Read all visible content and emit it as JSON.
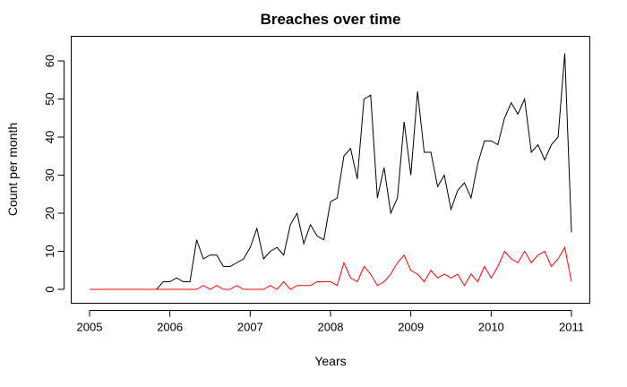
{
  "chart_data": {
    "type": "line",
    "title": "Breaches over time",
    "xlabel": "Years",
    "ylabel": "Count per month",
    "xlim": [
      2005,
      2011
    ],
    "ylim": [
      0,
      62
    ],
    "x_ticks": [
      2005,
      2006,
      2007,
      2008,
      2009,
      2010,
      2011
    ],
    "y_ticks": [
      0,
      10,
      20,
      30,
      40,
      50,
      60
    ],
    "grid": false,
    "legend": "none",
    "x_start": "2005-01",
    "x_step_months": 1,
    "series": [
      {
        "color": "#000000",
        "values": [
          0,
          0,
          0,
          0,
          0,
          0,
          0,
          0,
          0,
          0,
          0,
          2,
          2,
          3,
          2,
          2,
          13,
          8,
          9,
          9,
          6,
          6,
          7,
          8,
          11,
          16,
          8,
          10,
          11,
          9,
          17,
          20,
          12,
          17,
          14,
          13,
          23,
          24,
          35,
          37,
          29,
          50,
          51,
          24,
          32,
          20,
          24,
          44,
          30,
          52,
          36,
          36,
          27,
          30,
          21,
          26,
          28,
          24,
          33,
          39,
          39,
          38,
          45,
          49,
          46,
          50,
          36,
          38,
          34,
          38,
          40,
          62,
          15
        ]
      },
      {
        "color": "#ff0000",
        "values": [
          0,
          0,
          0,
          0,
          0,
          0,
          0,
          0,
          0,
          0,
          0,
          0,
          0,
          0,
          0,
          0,
          0,
          1,
          0,
          1,
          0,
          0,
          1,
          0,
          0,
          0,
          0,
          1,
          0,
          2,
          0,
          1,
          1,
          1,
          2,
          2,
          2,
          1,
          7,
          3,
          2,
          6,
          4,
          1,
          2,
          4,
          7,
          9,
          5,
          4,
          2,
          5,
          3,
          4,
          3,
          4,
          1,
          4,
          2,
          6,
          3,
          6,
          10,
          8,
          7,
          10,
          7,
          9,
          10,
          6,
          8,
          11,
          2
        ]
      }
    ]
  }
}
